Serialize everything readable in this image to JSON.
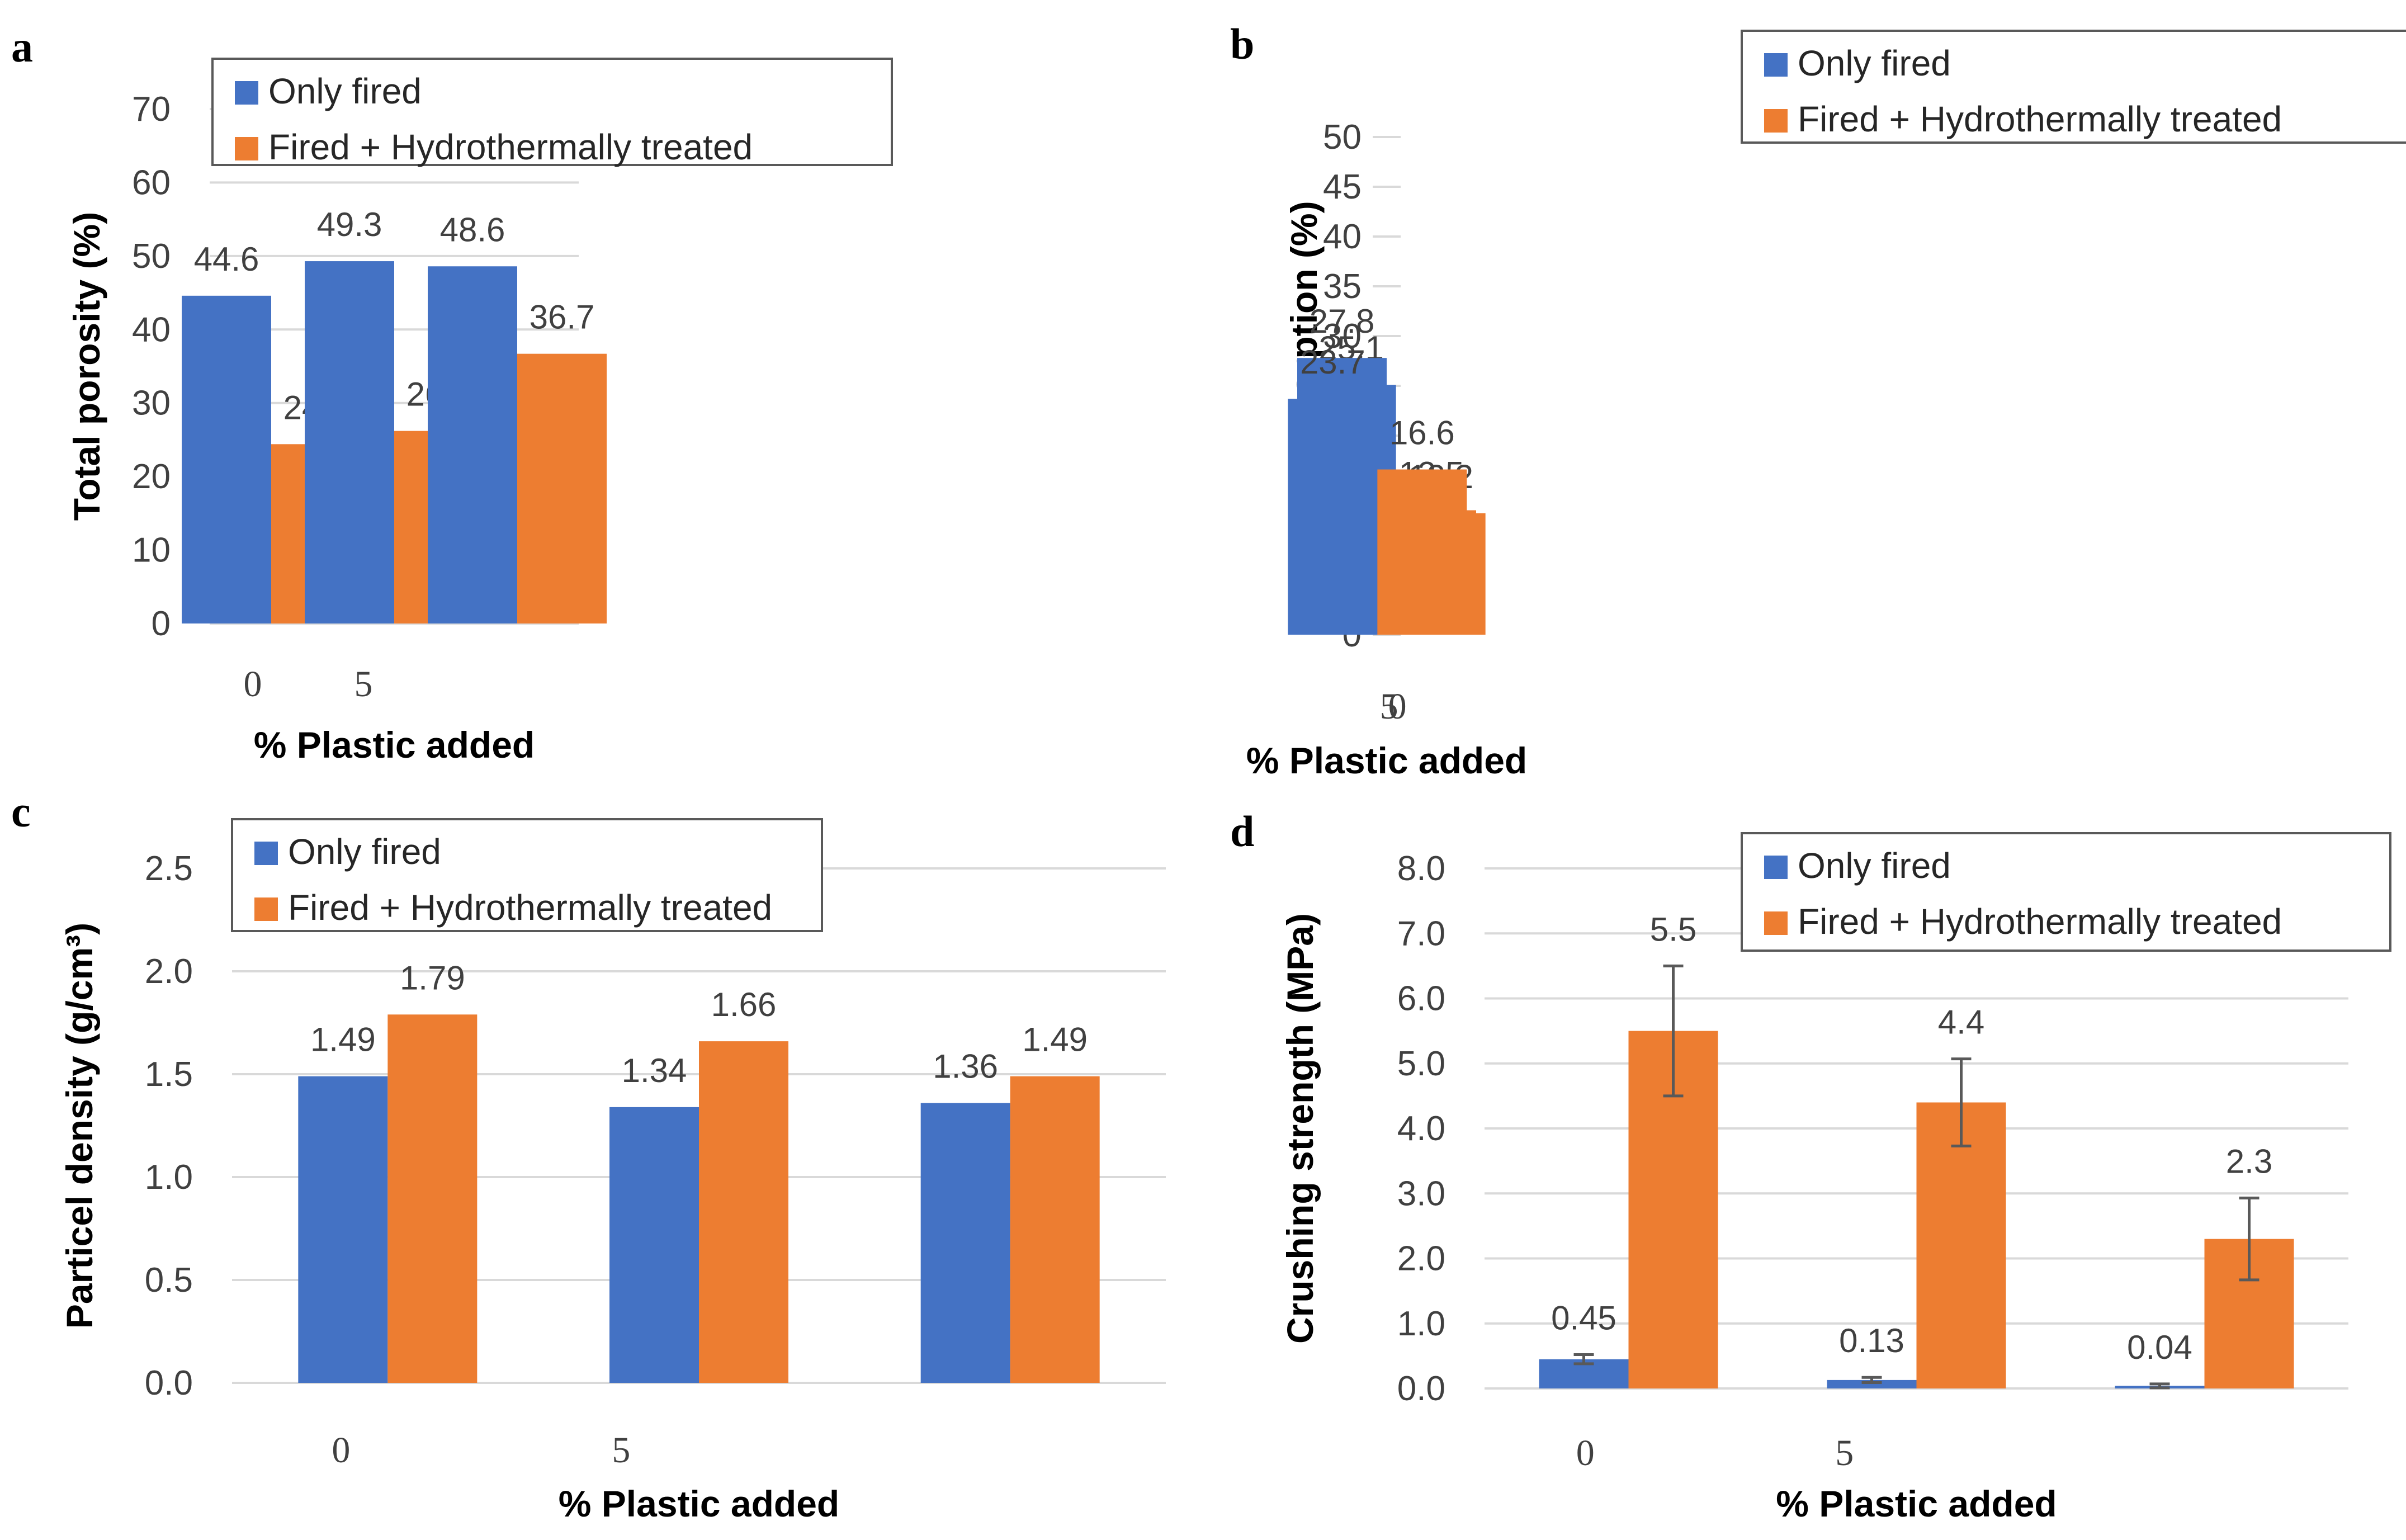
{
  "colors": {
    "only_fired": "#4472c4",
    "fired_hydro": "#ed7d31"
  },
  "chart_data": [
    {
      "type": "bar",
      "panel": "a",
      "xlabel": "% Plastic added",
      "ylabel": "Total porosity (%)",
      "ylim": [
        0,
        70
      ],
      "yticks": [
        "0",
        "10",
        "20",
        "30",
        "40",
        "50",
        "60",
        "70"
      ],
      "category_labels": [
        "0",
        "5",
        ""
      ],
      "series": [
        {
          "name": "Only fired",
          "values": [
            44.6,
            49.3,
            48.6
          ],
          "labels": [
            "44.6",
            "49.3",
            "48.6"
          ]
        },
        {
          "name": "Fired + Hydrothermally treated",
          "values": [
            24.4,
            26.2,
            36.7
          ],
          "labels": [
            "24.4",
            "26.2",
            "36.7"
          ]
        }
      ],
      "legend": "top"
    },
    {
      "type": "bar",
      "panel": "b",
      "xlabel": "% Plastic added",
      "ylabel": "Water absorption (%)",
      "ylim": [
        0,
        50
      ],
      "yticks": [
        "0",
        "5",
        "10",
        "15",
        "20",
        "25",
        "30",
        "35",
        "40",
        "45",
        "50"
      ],
      "category_labels": [
        "0",
        "5",
        ""
      ],
      "series": [
        {
          "name": "Only fired",
          "values": [
            25.1,
            27.8,
            23.7
          ],
          "labels": [
            "25.1",
            "27.8",
            "23.7"
          ]
        },
        {
          "name": "Fired + Hydrothermally treated",
          "values": [
            12.2,
            12.5,
            16.6
          ],
          "labels": [
            "12.2",
            "12.5",
            "16.6"
          ]
        }
      ],
      "legend": "top-right"
    },
    {
      "type": "bar",
      "panel": "c",
      "xlabel": "% Plastic added",
      "ylabel": "Particel density (g/cm³)",
      "ylim": [
        0,
        2.5
      ],
      "yticks": [
        "0.0",
        "0.5",
        "1.0",
        "1.5",
        "2.0",
        "2.5"
      ],
      "category_labels": [
        "0",
        "5",
        ""
      ],
      "series": [
        {
          "name": "Only fired",
          "values": [
            1.49,
            1.34,
            1.36
          ],
          "labels": [
            "1.49",
            "1.34",
            "1.36"
          ]
        },
        {
          "name": "Fired + Hydrothermally treated",
          "values": [
            1.79,
            1.66,
            1.49
          ],
          "labels": [
            "1.79",
            "1.66",
            "1.49"
          ]
        }
      ],
      "legend": "top"
    },
    {
      "type": "bar",
      "panel": "d",
      "xlabel": "% Plastic added",
      "ylabel": "Crushing strength (MPa)",
      "ylim": [
        0,
        8
      ],
      "yticks": [
        "0.0",
        "1.0",
        "2.0",
        "3.0",
        "4.0",
        "5.0",
        "6.0",
        "7.0",
        "8.0"
      ],
      "category_labels": [
        "0",
        "5",
        ""
      ],
      "series": [
        {
          "name": "Only fired",
          "values": [
            0.45,
            0.13,
            0.04
          ],
          "labels": [
            "0.45",
            "0.13",
            "0.04"
          ],
          "error": [
            0.07,
            0.04,
            0.03
          ]
        },
        {
          "name": "Fired + Hydrothermally treated",
          "values": [
            5.5,
            4.4,
            2.3
          ],
          "labels": [
            "5.5",
            "4.4",
            "2.3"
          ],
          "error": [
            1.0,
            0.67,
            0.63
          ]
        }
      ],
      "legend": "top-right"
    }
  ]
}
